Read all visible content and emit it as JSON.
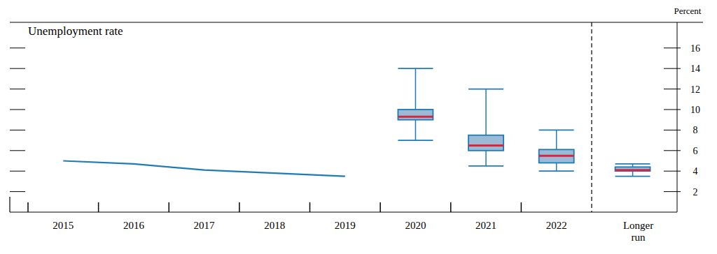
{
  "chart_data": {
    "type": "box",
    "title": "Unemployment rate",
    "y_label": "Percent",
    "categories": [
      "2015",
      "2016",
      "2017",
      "2018",
      "2019",
      "2020",
      "2021",
      "2022",
      "Longer run"
    ],
    "ylim": [
      0,
      18.5
    ],
    "yticks": [
      2,
      4,
      6,
      8,
      10,
      12,
      14,
      16
    ],
    "grid": false,
    "series": [
      {
        "type": "line",
        "color": "#1f7ab8",
        "values": [
          5.0,
          4.7,
          4.1,
          3.8,
          3.5,
          null,
          null,
          null,
          null
        ]
      },
      {
        "type": "box",
        "color": "#1f7ab8",
        "low": [
          null,
          null,
          null,
          null,
          null,
          7.0,
          4.5,
          4.0,
          3.5
        ],
        "box_low": [
          null,
          null,
          null,
          null,
          null,
          9.0,
          6.0,
          4.8,
          4.0
        ],
        "median": [
          null,
          null,
          null,
          null,
          null,
          9.3,
          6.5,
          5.5,
          4.1
        ],
        "box_high": [
          null,
          null,
          null,
          null,
          null,
          10.0,
          7.5,
          6.1,
          4.4
        ],
        "high": [
          null,
          null,
          null,
          null,
          null,
          14.0,
          12.0,
          8.0,
          4.7
        ]
      }
    ]
  }
}
